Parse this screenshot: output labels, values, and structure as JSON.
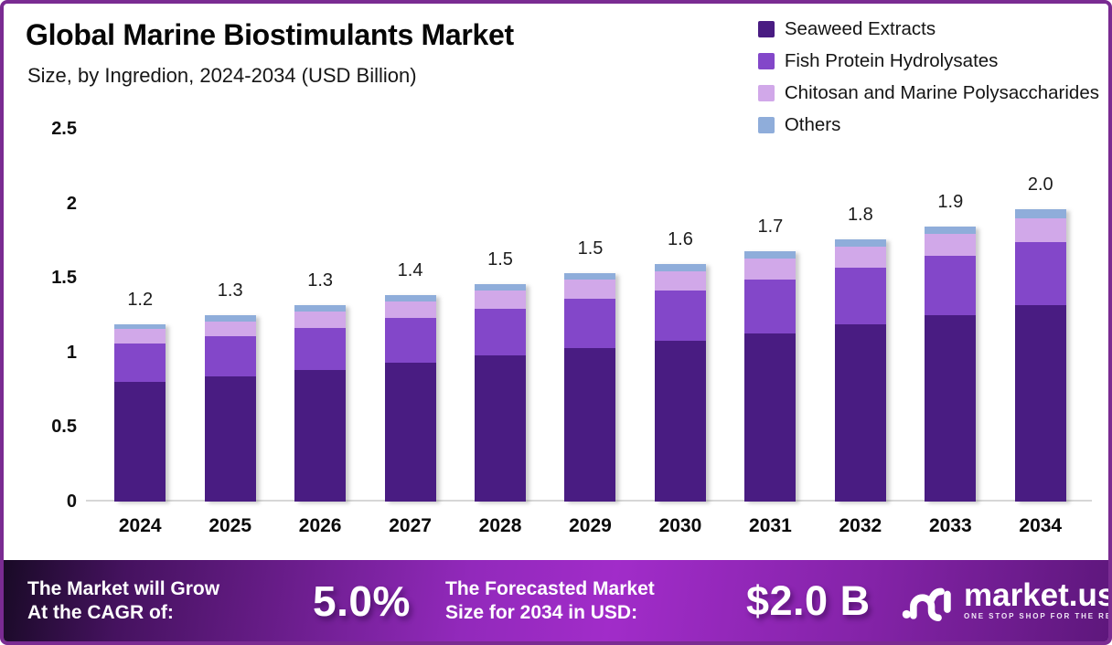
{
  "header": {
    "title": "Global Marine Biostimulants Market",
    "subtitle": "Size, by Ingredion, 2024-2034 (USD Billion)"
  },
  "chart_data": {
    "type": "bar",
    "stacked": true,
    "title": "Global Marine Biostimulants Market Size, by Ingredion, 2024-2034 (USD Billion)",
    "unit": "USD Billion",
    "categories": [
      "2024",
      "2025",
      "2026",
      "2027",
      "2028",
      "2029",
      "2030",
      "2031",
      "2032",
      "2033",
      "2034"
    ],
    "series": [
      {
        "name": "Seaweed Extracts",
        "color": "#491c82",
        "values": [
          0.8,
          0.84,
          0.88,
          0.93,
          0.98,
          1.03,
          1.08,
          1.13,
          1.19,
          1.25,
          1.32
        ]
      },
      {
        "name": "Fish Protein Hydrolysates",
        "color": "#8347c9",
        "values": [
          0.26,
          0.27,
          0.28,
          0.3,
          0.31,
          0.33,
          0.34,
          0.36,
          0.38,
          0.4,
          0.42
        ]
      },
      {
        "name": "Chitosan and Marine Polysaccharides",
        "color": "#d1a8e9",
        "values": [
          0.1,
          0.1,
          0.11,
          0.11,
          0.12,
          0.13,
          0.13,
          0.14,
          0.14,
          0.15,
          0.16
        ]
      },
      {
        "name": "Others",
        "color": "#8fadda",
        "values": [
          0.03,
          0.04,
          0.04,
          0.04,
          0.04,
          0.04,
          0.05,
          0.05,
          0.05,
          0.05,
          0.06
        ]
      }
    ],
    "total_labels": [
      "1.2",
      "1.3",
      "1.3",
      "1.4",
      "1.5",
      "1.5",
      "1.6",
      "1.7",
      "1.8",
      "1.9",
      "2.0"
    ],
    "yticks": [
      0,
      0.5,
      1,
      1.5,
      2,
      2.5
    ],
    "ytick_labels": [
      "0",
      "0.5",
      "1",
      "1.5",
      "2",
      "2.5"
    ],
    "ylim": [
      0,
      2.5
    ],
    "xlabel": "",
    "ylabel": "",
    "grid": false,
    "legend_position": "top-right"
  },
  "footer": {
    "cagr_line1": "The Market will Grow",
    "cagr_line2": "At the CAGR of:",
    "cagr_value": "5.0%",
    "forecast_line1": "The Forecasted Market",
    "forecast_line2": "Size for 2034 in USD:",
    "forecast_value": "$2.0 B",
    "brand_name": "market.us",
    "brand_tagline": "ONE STOP SHOP FOR THE REPORTS"
  },
  "colors": {
    "page_border": "#7a2b92",
    "axis_line": "#d7d7d7",
    "label_text": "#1c1c1c"
  }
}
